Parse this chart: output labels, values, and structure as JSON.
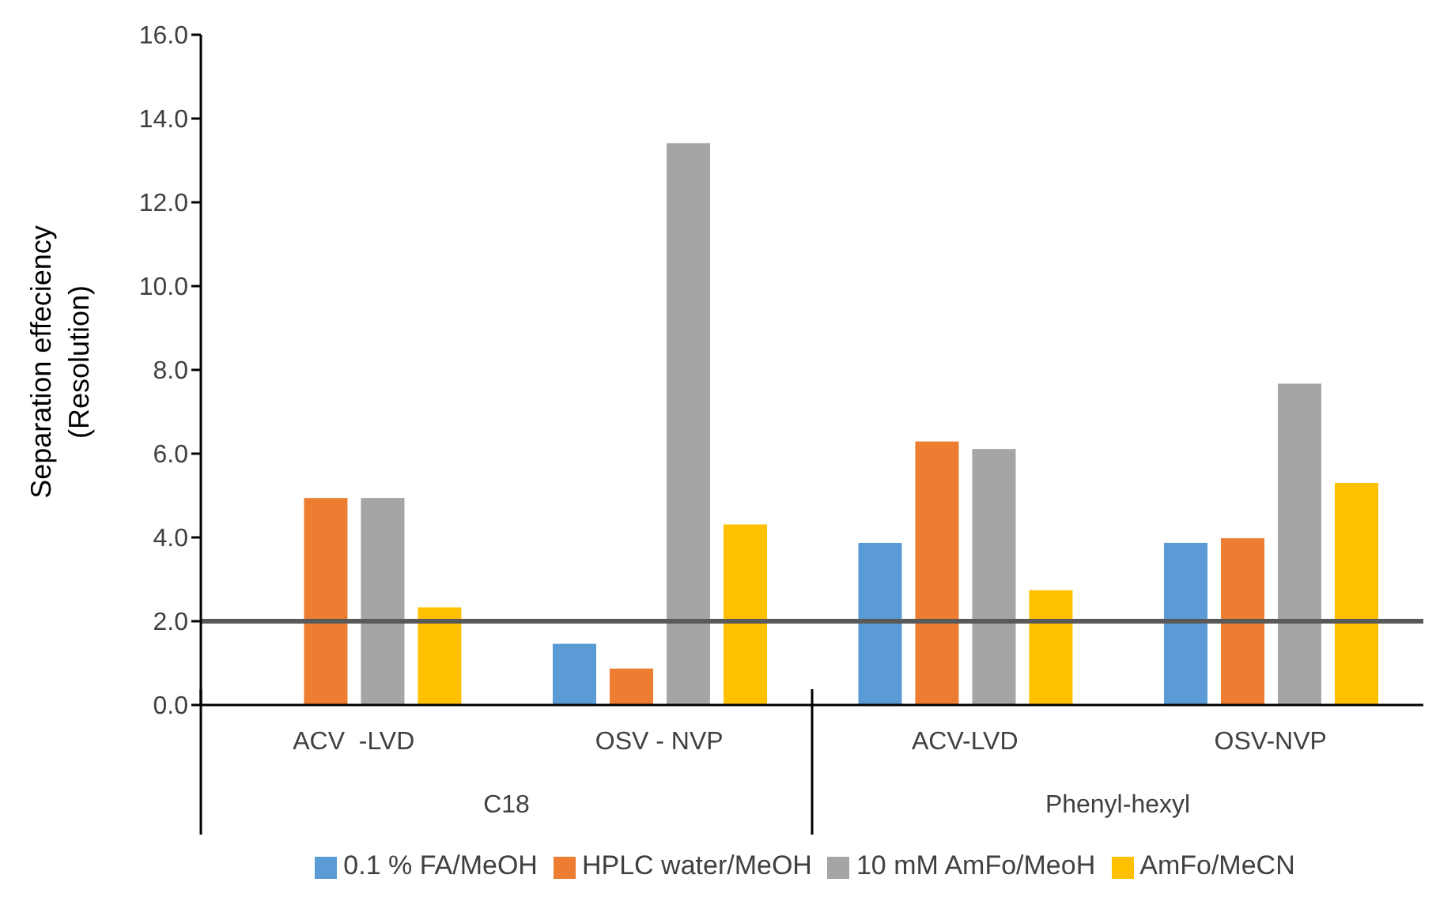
{
  "chart_data": {
    "type": "bar",
    "ylabel": "Separation effeciency (Resolution)",
    "categories": [
      "ACV  -LVD",
      "OSV - NVP",
      "ACV-LVD",
      "OSV-NVP"
    ],
    "series": [
      {
        "name": "0.1 % FA/MeOH",
        "color": "#5b9bd5",
        "values": [
          null,
          1.47,
          3.88,
          3.88
        ]
      },
      {
        "name": "HPLC water/MeOH",
        "color": "#ed7d31",
        "values": [
          4.95,
          0.88,
          6.3,
          3.99
        ]
      },
      {
        "name": "10 mM AmFo/MeoH",
        "color": "#a5a5a5",
        "values": [
          4.95,
          13.42,
          6.12,
          7.68
        ]
      },
      {
        "name": "AmFo/MeCN",
        "color": "#ffc000",
        "values": [
          2.34,
          4.32,
          2.75,
          5.31
        ]
      }
    ],
    "ylim": [
      0,
      16
    ],
    "yticks": [
      {
        "value": 0,
        "label": "0.0"
      },
      {
        "value": 2,
        "label": "2.0"
      },
      {
        "value": 4,
        "label": "4.0"
      },
      {
        "value": 6,
        "label": "6.0"
      },
      {
        "value": 8,
        "label": "8.0"
      },
      {
        "value": 10,
        "label": "10.0"
      },
      {
        "value": 12,
        "label": "12.0"
      },
      {
        "value": 14,
        "label": "14.0"
      },
      {
        "value": 16,
        "label": "16.0"
      }
    ],
    "ref_lines": [
      {
        "axis": "y",
        "value": 2,
        "color": "#595959"
      }
    ],
    "annotations": [
      "C18",
      "Phenyl-hexyl"
    ],
    "grid": false,
    "legend": "bottom"
  }
}
